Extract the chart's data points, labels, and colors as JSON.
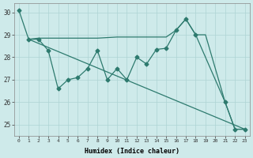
{
  "xlabel": "Humidex (Indice chaleur)",
  "bg_color": "#ceeaea",
  "line_color": "#2d7a6e",
  "grid_color": "#add4d4",
  "xmin": -0.5,
  "xmax": 23.5,
  "ymin": 24.5,
  "ymax": 30.4,
  "yticks": [
    25,
    26,
    27,
    28,
    29,
    30
  ],
  "xticks": [
    0,
    1,
    2,
    3,
    4,
    5,
    6,
    7,
    8,
    9,
    10,
    11,
    12,
    13,
    14,
    15,
    16,
    17,
    18,
    19,
    20,
    21,
    22,
    23
  ],
  "series": [
    {
      "x": [
        0,
        1,
        2,
        3,
        4,
        5,
        6,
        7,
        8,
        9,
        10,
        11,
        12,
        13,
        14,
        15,
        16,
        17,
        18,
        21,
        22,
        23
      ],
      "y": [
        30.1,
        28.8,
        28.8,
        28.3,
        26.6,
        27.0,
        27.1,
        27.5,
        28.3,
        27.0,
        27.5,
        27.0,
        28.0,
        27.7,
        28.35,
        28.4,
        29.2,
        29.7,
        29.0,
        26.0,
        24.8,
        24.8
      ],
      "linestyle": "-",
      "marker": "D",
      "markersize": 2.5,
      "linewidth": 0.9
    },
    {
      "x": [
        1,
        23
      ],
      "y": [
        28.8,
        24.8
      ],
      "linestyle": "-",
      "marker": null,
      "markersize": 0,
      "linewidth": 0.9
    },
    {
      "x": [
        1,
        2,
        3,
        7,
        8,
        10,
        12,
        13,
        14,
        15,
        16,
        17,
        18,
        19,
        20,
        21,
        22,
        23
      ],
      "y": [
        28.8,
        28.85,
        28.85,
        28.85,
        28.85,
        28.9,
        28.9,
        28.9,
        28.9,
        28.9,
        29.2,
        29.7,
        29.0,
        29.0,
        27.5,
        26.0,
        24.8,
        24.8
      ],
      "linestyle": "-",
      "marker": null,
      "markersize": 0,
      "linewidth": 0.9
    }
  ]
}
